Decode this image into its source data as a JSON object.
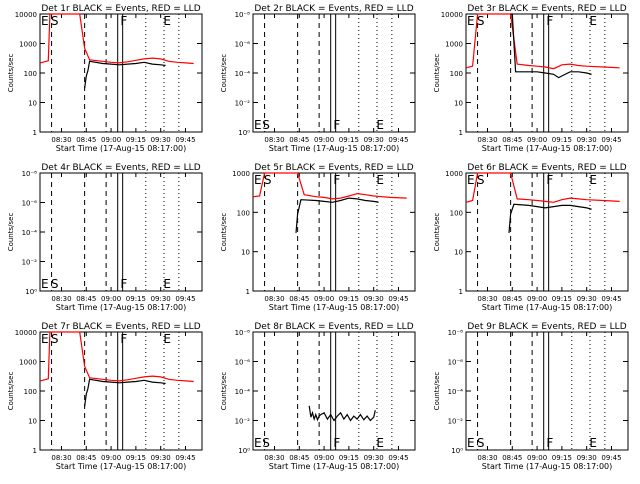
{
  "colors": {
    "events": "#000000",
    "lld": "#ff0000",
    "frame": "#000000",
    "background": "#ffffff"
  },
  "x_ticks": [
    "08:30",
    "08:45",
    "09:00",
    "09:15",
    "09:30",
    "09:45"
  ],
  "xlabel": "Start Time (17-Aug-15 08:17:00)",
  "ylabel": "Counts/sec",
  "chart_data": [
    {
      "type": "line",
      "title": "Det 1r BLACK = Events, RED = LLD",
      "yscale": "log",
      "y_ticks": [
        "1",
        "10",
        "100",
        "1000",
        "10000"
      ],
      "ylim": [
        1,
        10000
      ],
      "xlim": [
        "08:17",
        "09:55"
      ],
      "markers": [
        {
          "label": "E",
          "x": "08:17"
        },
        {
          "label": "S",
          "x": "08:23"
        },
        {
          "label": "F",
          "x": "09:05"
        },
        {
          "label": "E",
          "x": "09:31"
        }
      ],
      "series": [
        {
          "color": "red",
          "x": [
            "08:17",
            "08:22",
            "08:23",
            "08:27",
            "08:41",
            "08:44",
            "08:47",
            "08:55",
            "09:00",
            "09:05",
            "09:10",
            "09:15",
            "09:20",
            "09:25",
            "09:30",
            "09:35",
            "09:40",
            "09:45",
            "09:50"
          ],
          "y": [
            220,
            260,
            10000,
            10000,
            10000,
            700,
            280,
            250,
            230,
            220,
            240,
            270,
            300,
            320,
            300,
            250,
            230,
            220,
            210
          ]
        },
        {
          "color": "black",
          "x": [
            "08:44",
            "08:45",
            "08:46",
            "08:47",
            "08:55",
            "09:00",
            "09:05",
            "09:10",
            "09:15",
            "09:20",
            "09:25",
            "09:30",
            "09:33"
          ],
          "y": [
            30,
            80,
            120,
            250,
            210,
            200,
            190,
            200,
            210,
            230,
            200,
            190,
            180
          ]
        }
      ]
    },
    {
      "type": "line",
      "title": "Det 2r BLACK = Events, RED = LLD",
      "yscale": "log",
      "y_ticks": [
        "10⁰",
        "10⁻²",
        "10⁻⁴",
        "10⁻⁶",
        "10⁻⁸"
      ],
      "ylim": [
        1,
        1e-08
      ],
      "xlim": [
        "08:17",
        "09:55"
      ],
      "markers": [
        {
          "label": "E",
          "x": "08:17"
        },
        {
          "label": "S",
          "x": "08:22"
        },
        {
          "label": "F",
          "x": "09:05"
        },
        {
          "label": "E",
          "x": "09:31"
        }
      ],
      "series": []
    },
    {
      "type": "line",
      "title": "Det 3r BLACK = Events, RED = LLD",
      "yscale": "log",
      "y_ticks": [
        "1",
        "10",
        "100",
        "1000",
        "10000"
      ],
      "ylim": [
        1,
        10000
      ],
      "xlim": [
        "08:17",
        "09:55"
      ],
      "markers": [
        {
          "label": "E",
          "x": "08:17"
        },
        {
          "label": "S",
          "x": "08:23"
        },
        {
          "label": "F",
          "x": "09:05"
        },
        {
          "label": "E",
          "x": "09:31"
        }
      ],
      "series": [
        {
          "color": "red",
          "x": [
            "08:17",
            "08:21",
            "08:24",
            "08:43",
            "08:44",
            "08:48",
            "08:55",
            "09:00",
            "09:05",
            "09:10",
            "09:15",
            "09:20",
            "09:25",
            "09:30",
            "09:40",
            "09:50"
          ],
          "y": [
            150,
            170,
            10000,
            10000,
            10000,
            200,
            180,
            170,
            160,
            140,
            190,
            200,
            180,
            170,
            160,
            150
          ]
        },
        {
          "color": "black",
          "x": [
            "08:44",
            "08:45",
            "08:47",
            "08:55",
            "09:00",
            "09:05",
            "09:10",
            "09:13",
            "09:20",
            "09:25",
            "09:30",
            "09:33"
          ],
          "y": [
            10000,
            10000,
            110,
            110,
            110,
            100,
            90,
            70,
            110,
            110,
            100,
            90
          ]
        }
      ]
    },
    {
      "type": "line",
      "title": "Det 4r BLACK = Events, RED = LLD",
      "yscale": "log",
      "y_ticks": [
        "10⁰",
        "10⁻²",
        "10⁻⁴",
        "10⁻⁶",
        "10⁻⁸"
      ],
      "ylim": [
        1,
        1e-08
      ],
      "xlim": [
        "08:17",
        "09:55"
      ],
      "markers": [
        {
          "label": "E",
          "x": "08:17"
        },
        {
          "label": "S",
          "x": "08:23"
        },
        {
          "label": "F",
          "x": "09:05"
        },
        {
          "label": "E",
          "x": "09:31"
        }
      ],
      "series": []
    },
    {
      "type": "line",
      "title": "Det 5r BLACK = Events, RED = LLD",
      "yscale": "log",
      "y_ticks": [
        "1",
        "10",
        "100",
        "1000"
      ],
      "ylim": [
        1,
        1000
      ],
      "xlim": [
        "08:17",
        "09:55"
      ],
      "markers": [
        {
          "label": "E",
          "x": "08:17"
        },
        {
          "label": "S",
          "x": "08:23"
        },
        {
          "label": "F",
          "x": "09:05"
        },
        {
          "label": "E",
          "x": "09:31"
        }
      ],
      "series": [
        {
          "color": "red",
          "x": [
            "08:17",
            "08:21",
            "08:24",
            "08:43",
            "08:44",
            "08:48",
            "08:55",
            "09:00",
            "09:05",
            "09:10",
            "09:15",
            "09:20",
            "09:25",
            "09:30",
            "09:40",
            "09:50"
          ],
          "y": [
            250,
            260,
            1000,
            1000,
            1000,
            280,
            250,
            240,
            220,
            230,
            260,
            300,
            280,
            260,
            240,
            230
          ]
        },
        {
          "color": "black",
          "x": [
            "08:43",
            "08:44",
            "08:46",
            "08:55",
            "09:00",
            "09:05",
            "09:10",
            "09:15",
            "09:20",
            "09:25",
            "09:30",
            "09:33"
          ],
          "y": [
            30,
            90,
            210,
            200,
            190,
            180,
            200,
            230,
            220,
            200,
            190,
            180
          ]
        }
      ]
    },
    {
      "type": "line",
      "title": "Det 6r BLACK = Events, RED = LLD",
      "yscale": "log",
      "y_ticks": [
        "1",
        "10",
        "100",
        "1000"
      ],
      "ylim": [
        1,
        1000
      ],
      "xlim": [
        "08:17",
        "09:55"
      ],
      "markers": [
        {
          "label": "E",
          "x": "08:17"
        },
        {
          "label": "S",
          "x": "08:23"
        },
        {
          "label": "F",
          "x": "09:05"
        },
        {
          "label": "E",
          "x": "09:31"
        }
      ],
      "series": [
        {
          "color": "red",
          "x": [
            "08:17",
            "08:21",
            "08:24",
            "08:43",
            "08:44",
            "08:48",
            "08:55",
            "09:00",
            "09:05",
            "09:10",
            "09:15",
            "09:20",
            "09:25",
            "09:30",
            "09:40",
            "09:50"
          ],
          "y": [
            180,
            200,
            1000,
            1000,
            1000,
            220,
            210,
            200,
            190,
            180,
            210,
            230,
            220,
            210,
            200,
            190
          ]
        },
        {
          "color": "black",
          "x": [
            "08:43",
            "08:44",
            "08:46",
            "08:55",
            "09:00",
            "09:05",
            "09:10",
            "09:15",
            "09:20",
            "09:25",
            "09:30",
            "09:33"
          ],
          "y": [
            30,
            90,
            160,
            150,
            140,
            130,
            140,
            150,
            150,
            140,
            130,
            120
          ]
        }
      ]
    },
    {
      "type": "line",
      "title": "Det 7r BLACK = Events, RED = LLD",
      "yscale": "log",
      "y_ticks": [
        "1",
        "10",
        "100",
        "1000",
        "10000"
      ],
      "ylim": [
        1,
        10000
      ],
      "xlim": [
        "08:17",
        "09:55"
      ],
      "markers": [
        {
          "label": "E",
          "x": "08:17"
        },
        {
          "label": "S",
          "x": "08:23"
        },
        {
          "label": "F",
          "x": "09:05"
        },
        {
          "label": "E",
          "x": "09:31"
        }
      ],
      "series": [
        {
          "color": "red",
          "x": [
            "08:17",
            "08:22",
            "08:23",
            "08:27",
            "08:41",
            "08:44",
            "08:47",
            "08:55",
            "09:00",
            "09:05",
            "09:10",
            "09:15",
            "09:20",
            "09:25",
            "09:30",
            "09:35",
            "09:40",
            "09:45",
            "09:50"
          ],
          "y": [
            220,
            260,
            10000,
            10000,
            10000,
            700,
            280,
            250,
            230,
            220,
            240,
            270,
            300,
            320,
            300,
            250,
            230,
            220,
            210
          ]
        },
        {
          "color": "black",
          "x": [
            "08:44",
            "08:45",
            "08:46",
            "08:47",
            "08:55",
            "09:00",
            "09:05",
            "09:10",
            "09:15",
            "09:20",
            "09:25",
            "09:30",
            "09:33"
          ],
          "y": [
            30,
            80,
            120,
            250,
            210,
            200,
            190,
            200,
            210,
            230,
            200,
            190,
            180
          ]
        }
      ]
    },
    {
      "type": "line",
      "title": "Det 8r BLACK = Events, RED = LLD",
      "yscale": "log",
      "y_ticks": [
        "10⁰",
        "10⁻²",
        "10⁻⁴",
        "10⁻⁶",
        "10⁻⁸"
      ],
      "ylim": [
        1,
        1e-08
      ],
      "xlim": [
        "08:17",
        "09:55"
      ],
      "markers": [
        {
          "label": "E",
          "x": "08:17"
        },
        {
          "label": "S",
          "x": "08:22"
        },
        {
          "label": "F",
          "x": "09:05"
        },
        {
          "label": "E",
          "x": "09:31"
        }
      ],
      "series": [
        {
          "color": "black",
          "x": [
            "08:51",
            "08:52",
            "08:53",
            "08:54",
            "08:55",
            "08:56",
            "08:57",
            "08:58",
            "09:00",
            "09:02",
            "09:04",
            "09:06",
            "09:08",
            "09:10",
            "09:12",
            "09:14",
            "09:16",
            "09:18",
            "09:20",
            "09:22",
            "09:24",
            "09:26",
            "09:28",
            "09:30",
            "09:31"
          ],
          "y": [
            0.001,
            0.006,
            0.003,
            0.008,
            0.004,
            0.009,
            0.005,
            0.004,
            0.003,
            0.008,
            0.004,
            0.01,
            0.005,
            0.003,
            0.008,
            0.004,
            0.01,
            0.005,
            0.008,
            0.004,
            0.009,
            0.005,
            0.01,
            0.006,
            0.002
          ]
        }
      ]
    },
    {
      "type": "line",
      "title": "Det 9r BLACK = Events, RED = LLD",
      "yscale": "log",
      "y_ticks": [
        "10⁰",
        "10⁻²",
        "10⁻⁴",
        "10⁻⁶",
        "10⁻⁸"
      ],
      "ylim": [
        1,
        1e-08
      ],
      "xlim": [
        "08:17",
        "09:55"
      ],
      "markers": [
        {
          "label": "E",
          "x": "08:17"
        },
        {
          "label": "S",
          "x": "08:23"
        },
        {
          "label": "F",
          "x": "09:05"
        },
        {
          "label": "E",
          "x": "09:31"
        }
      ],
      "series": []
    }
  ]
}
